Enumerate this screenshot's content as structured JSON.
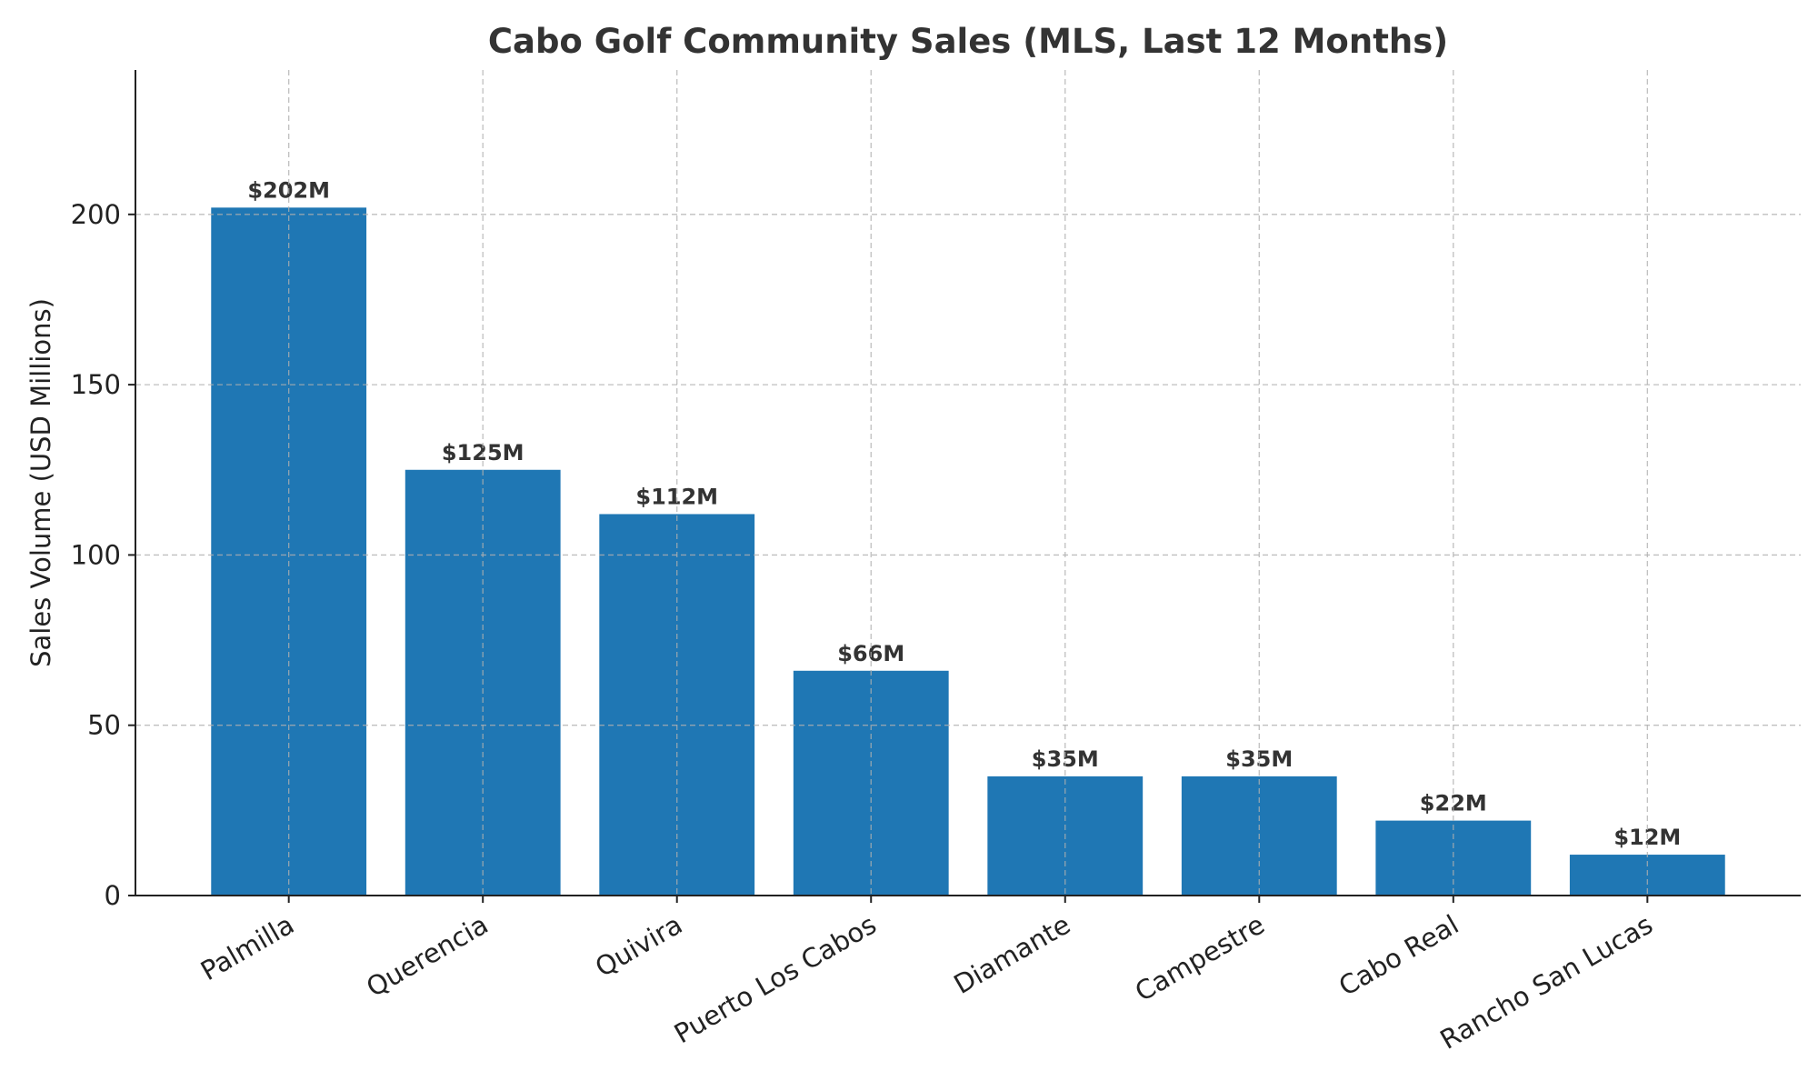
{
  "chart_data": {
    "type": "bar",
    "title": "Cabo Golf Community Sales (MLS, Last 12 Months)",
    "xlabel": "",
    "ylabel": "Sales Volume (USD Millions)",
    "categories": [
      "Palmilla",
      "Querencia",
      "Quivira",
      "Puerto Los Cabos",
      "Diamante",
      "Campestre",
      "Cabo Real",
      "Rancho San Lucas"
    ],
    "values": [
      202,
      125,
      112,
      66,
      35,
      35,
      22,
      12
    ],
    "data_labels": [
      "$202M",
      "$125M",
      "$112M",
      "$66M",
      "$35M",
      "$35M",
      "$22M",
      "$12M"
    ],
    "ylim": [
      0,
      242.4
    ],
    "yticks": [
      0,
      50,
      100,
      150,
      200
    ],
    "grid": true,
    "bar_color": "#1f77b4"
  }
}
